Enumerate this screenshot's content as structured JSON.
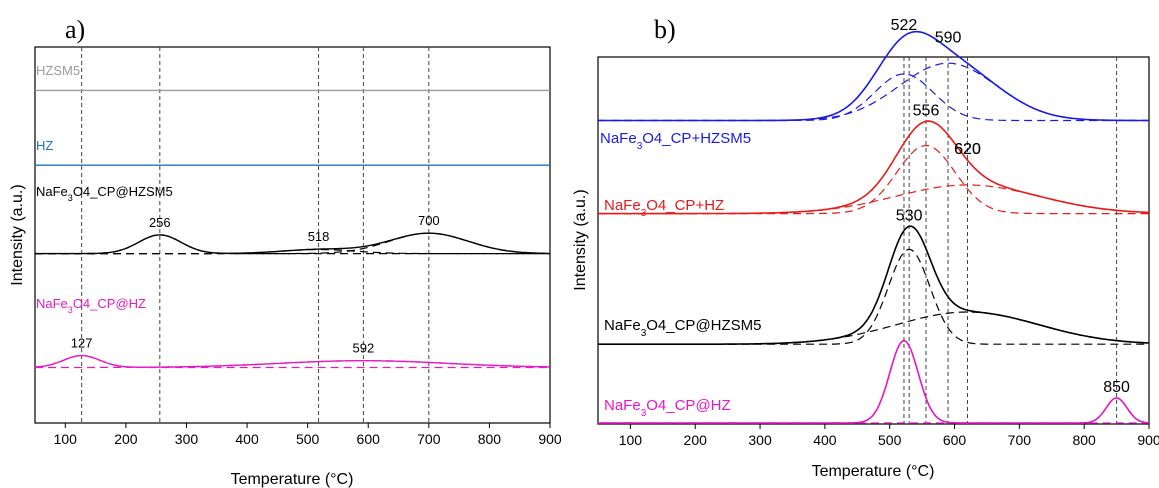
{
  "chart_data": [
    {
      "type": "line",
      "panel_label": "a)",
      "xlabel": "Temperature (°C)",
      "ylabel": "Intensity (a.u.)",
      "xlim": [
        50,
        900
      ],
      "xticks": [
        100,
        200,
        300,
        400,
        500,
        600,
        700,
        800,
        900
      ],
      "grid": false,
      "vlines": [
        127,
        256,
        518,
        592,
        700
      ],
      "series": [
        {
          "label_main": "HZSM5",
          "label_sub": "",
          "label_tail": "",
          "color": "#9b9b9b",
          "baseline": 0.94,
          "peaks": [],
          "style": "solid"
        },
        {
          "label_main": "HZ",
          "label_sub": "",
          "label_tail": "",
          "color": "#1f6fd1",
          "baseline": 0.72,
          "peaks": [],
          "style": "solid"
        },
        {
          "label_main": "NaFe",
          "label_sub": "3",
          "label_tail": "O4_CP@HZSM5",
          "color": "#000000",
          "baseline": 0.46,
          "peaks": [
            {
              "x": 256,
              "height": 0.055,
              "width": 35
            },
            {
              "x": 518,
              "height": 0.012,
              "width": 60
            },
            {
              "x": 700,
              "height": 0.06,
              "width": 65
            }
          ],
          "style": "solid"
        },
        {
          "label_main": "NaFe",
          "label_sub": "3",
          "label_tail": "O4_CP@HZ",
          "color": "#e619c4",
          "baseline": 0.125,
          "peaks": [
            {
              "x": 127,
              "height": 0.035,
              "width": 30
            },
            {
              "x": 592,
              "height": 0.02,
              "width": 140
            }
          ],
          "style": "solid"
        }
      ],
      "annotations": [
        {
          "text": "256",
          "x": 256
        },
        {
          "text": "518",
          "x": 518
        },
        {
          "text": "700",
          "x": 700
        },
        {
          "text": "127",
          "x": 127
        },
        {
          "text": "592",
          "x": 592
        }
      ]
    },
    {
      "type": "line",
      "panel_label": "b)",
      "xlabel": "Temperature (°C)",
      "ylabel": "Intensity (a.u.)",
      "xlim": [
        50,
        900
      ],
      "xticks": [
        100,
        200,
        300,
        400,
        500,
        600,
        700,
        800,
        900
      ],
      "grid": false,
      "vlines": [
        522,
        530,
        556,
        590,
        620,
        850
      ],
      "series": [
        {
          "label_main": "NaFe",
          "label_sub": "3",
          "label_tail": "O4_CP+HZSM5",
          "color": "#1a1ae6",
          "baseline": 0.845,
          "peaks": [
            {
              "x": 522,
              "height": 0.13,
              "width": 45
            },
            {
              "x": 590,
              "height": 0.16,
              "width": 75
            }
          ],
          "style": "solid"
        },
        {
          "label_main": "NaFe",
          "label_sub": "3",
          "label_tail": "O4_CP+HZ",
          "color": "#e61a1a",
          "baseline": 0.585,
          "peaks": [
            {
              "x": 556,
              "height": 0.19,
              "width": 45
            },
            {
              "x": 620,
              "height": 0.08,
              "width": 110
            }
          ],
          "style": "solid"
        },
        {
          "label_main": "NaFe",
          "label_sub": "3",
          "label_tail": "O4_CP@HZSM5",
          "color": "#000000",
          "baseline": 0.22,
          "peaks": [
            {
              "x": 530,
              "height": 0.265,
              "width": 32
            },
            {
              "x": 620,
              "height": 0.09,
              "width": 110
            }
          ],
          "style": "solid"
        },
        {
          "label_main": "NaFe",
          "label_sub": "3",
          "label_tail": "O4_CP@HZ",
          "color": "#e619c4",
          "baseline": 0.0,
          "peaks": [
            {
              "x": 522,
              "height": 0.23,
              "width": 22
            },
            {
              "x": 850,
              "height": 0.07,
              "width": 16
            }
          ],
          "style": "solid"
        }
      ],
      "annotations": [
        {
          "text": "522",
          "x": 522
        },
        {
          "text": "590",
          "x": 590
        },
        {
          "text": "556",
          "x": 556
        },
        {
          "text": "620",
          "x": 620
        },
        {
          "text": "530",
          "x": 530
        },
        {
          "text": "620",
          "x": 620
        },
        {
          "text": "850",
          "x": 850
        }
      ]
    }
  ]
}
